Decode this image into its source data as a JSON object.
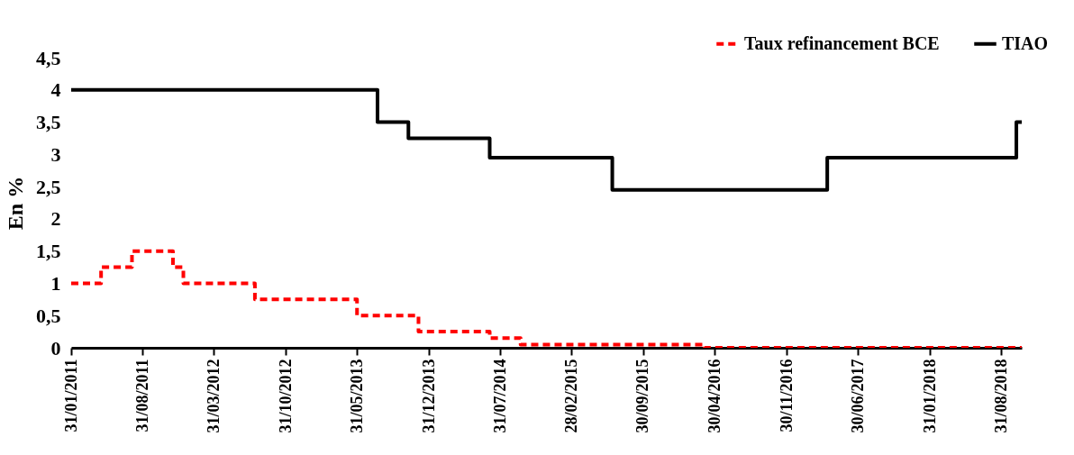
{
  "chart_data": {
    "type": "step",
    "ylabel": "En %",
    "legend": "top right",
    "grid": false,
    "x": [
      "2011-01-31",
      "2011-04-30",
      "2011-07-31",
      "2011-11-30",
      "2011-12-31",
      "2012-07-31",
      "2013-05-31",
      "2013-07-31",
      "2013-10-31",
      "2013-11-30",
      "2014-06-30",
      "2014-09-30",
      "2015-06-30",
      "2016-03-31",
      "2017-03-31",
      "2018-10-15",
      "2018-10-31"
    ],
    "series": [
      {
        "name": "Taux refinancement BCE",
        "color": "#ff0000",
        "line_style": "dashed",
        "values": [
          1,
          1.25,
          1.5,
          1.25,
          1,
          0.75,
          0.5,
          0.5,
          0.5,
          0.25,
          0.15,
          0.05,
          0.05,
          0,
          0,
          0,
          0
        ]
      },
      {
        "name": "TIAO",
        "color": "#000000",
        "line_style": "solid",
        "values": [
          4,
          4,
          4,
          4,
          4,
          4,
          4,
          3.5,
          3.25,
          3.25,
          2.95,
          2.95,
          2.45,
          2.45,
          2.95,
          3.5,
          3.5
        ]
      }
    ],
    "xlim": [
      "2011-01-31",
      "2018-10-31"
    ],
    "xticks": [
      {
        "value": "2011-01-31",
        "label": "31/01/2011"
      },
      {
        "value": "2011-08-31",
        "label": "31/08/2011"
      },
      {
        "value": "2012-03-31",
        "label": "31/03/2012"
      },
      {
        "value": "2012-10-31",
        "label": "31/10/2012"
      },
      {
        "value": "2013-05-31",
        "label": "31/05/2013"
      },
      {
        "value": "2013-12-31",
        "label": "31/12/2013"
      },
      {
        "value": "2014-07-31",
        "label": "31/07/2014"
      },
      {
        "value": "2015-02-28",
        "label": "28/02/2015"
      },
      {
        "value": "2015-09-30",
        "label": "30/09/2015"
      },
      {
        "value": "2016-04-30",
        "label": "30/04/2016"
      },
      {
        "value": "2016-11-30",
        "label": "30/11/2016"
      },
      {
        "value": "2017-06-30",
        "label": "30/06/2017"
      },
      {
        "value": "2018-01-31",
        "label": "31/01/2018"
      },
      {
        "value": "2018-08-31",
        "label": "31/08/2018"
      }
    ],
    "ylim": [
      0,
      4.5
    ],
    "yticks": [
      {
        "value": 0,
        "label": "0"
      },
      {
        "value": 0.5,
        "label": "0,5"
      },
      {
        "value": 1,
        "label": "1"
      },
      {
        "value": 1.5,
        "label": "1,5"
      },
      {
        "value": 2,
        "label": "2"
      },
      {
        "value": 2.5,
        "label": "2,5"
      },
      {
        "value": 3,
        "label": "3"
      },
      {
        "value": 3.5,
        "label": "3,5"
      },
      {
        "value": 4,
        "label": "4"
      },
      {
        "value": 4.5,
        "label": "4,5"
      }
    ]
  }
}
